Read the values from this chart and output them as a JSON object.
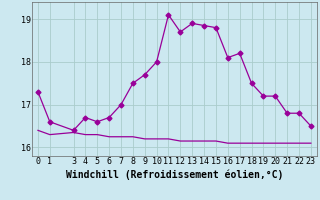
{
  "xlabel": "Windchill (Refroidissement éolien,°C)",
  "x": [
    0,
    1,
    3,
    4,
    5,
    6,
    7,
    8,
    9,
    10,
    11,
    12,
    13,
    14,
    15,
    16,
    17,
    18,
    19,
    20,
    21,
    22,
    23
  ],
  "y_windchill": [
    17.3,
    16.6,
    16.4,
    16.7,
    16.6,
    16.7,
    17.0,
    17.5,
    17.7,
    18.0,
    19.1,
    18.7,
    18.9,
    18.85,
    18.8,
    18.1,
    18.2,
    17.5,
    17.2,
    17.2,
    16.8,
    16.8,
    16.5
  ],
  "y_temp": [
    16.4,
    16.3,
    16.35,
    16.3,
    16.3,
    16.25,
    16.25,
    16.25,
    16.2,
    16.2,
    16.2,
    16.15,
    16.15,
    16.15,
    16.15,
    16.1,
    16.1,
    16.1,
    16.1,
    16.1,
    16.1,
    16.1,
    16.1
  ],
  "xticks": [
    0,
    1,
    3,
    4,
    5,
    6,
    7,
    8,
    9,
    10,
    11,
    12,
    13,
    14,
    15,
    16,
    17,
    18,
    19,
    20,
    21,
    22,
    23
  ],
  "yticks": [
    16,
    17,
    18,
    19
  ],
  "ylim": [
    15.8,
    19.4
  ],
  "xlim": [
    -0.5,
    23.5
  ],
  "line_color": "#990099",
  "bg_color": "#cce8f0",
  "grid_color": "#aacccc",
  "marker": "D",
  "marker_size": 2.5,
  "tick_fontsize": 6,
  "xlabel_fontsize": 7
}
